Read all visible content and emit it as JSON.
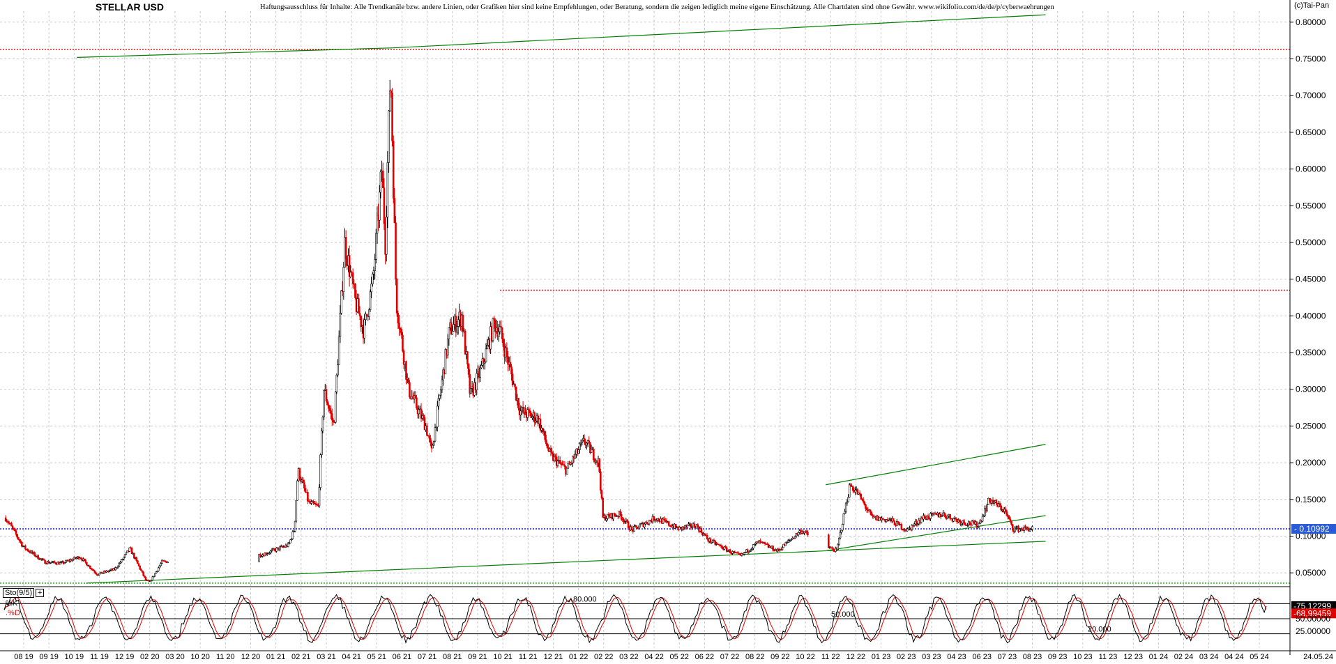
{
  "header": {
    "title": "STELLAR USD",
    "disclaimer": "Haftungsausschluss für Inhalte: Alle Trendkanäle bzw. andere Linien, oder Grafiken hier sind keine Empfehlungen, oder Beratung, sondern die zeigen lediglich meine eigene Einschätzung. Alle Chartdaten sind ohne Gewähr.  www.wikifolio.com/de/de/p/cyberwaehrungen",
    "copyright": "(c)Tai-Pan"
  },
  "colors": {
    "up_candle": "#000000",
    "down_candle": "#e00000",
    "grid": "#c8c8c8",
    "trendline": "#008000",
    "current_line": "#0000cc",
    "resistance_line": "#e00000",
    "current_label_bg": "#2a5bd7",
    "k_label_bg": "#000000",
    "d_label_bg": "#e00000"
  },
  "indicator": {
    "name": "Sto(9/5)",
    "k_label": "%K",
    "d_label": ".%D",
    "k_value": "75.12299",
    "d_value": "68.99459",
    "levels": [
      "80.000",
      "50.000",
      "20.000"
    ],
    "axis_labels": [
      "50.00000",
      "25.00000"
    ]
  },
  "chart_data": {
    "type": "candlestick",
    "title": "STELLAR USD",
    "xlabel": "",
    "ylabel": "",
    "ylim": [
      0.035,
      0.815
    ],
    "y_ticks": [
      "0.80000",
      "0.75000",
      "0.70000",
      "0.65000",
      "0.60000",
      "0.55000",
      "0.50000",
      "0.45000",
      "0.40000",
      "0.35000",
      "0.30000",
      "0.25000",
      "0.20000",
      "0.15000",
      "0.10000",
      "0.05000"
    ],
    "x_labels": [
      "08 19",
      "09 19",
      "10 19",
      "11 19",
      "12 19",
      "02 20",
      "03 20",
      "10 20",
      "11 20",
      "12 20",
      "01 21",
      "02 21",
      "03 21",
      "04 21",
      "05 21",
      "06 21",
      "07 21",
      "08 21",
      "09 21",
      "10 21",
      "11 21",
      "12 21",
      "01 22",
      "02 22",
      "03 22",
      "04 22",
      "05 22",
      "06 22",
      "07 22",
      "08 22",
      "09 22",
      "10 22",
      "11 22",
      "12 22",
      "01 23",
      "02 23",
      "03 23",
      "04 23",
      "06 23",
      "07 23",
      "08 23",
      "09 23",
      "10 23",
      "11 23",
      "12 23",
      "01 24",
      "02 24",
      "03 24",
      "04 24",
      "05 24"
    ],
    "last_date": "24.05.24",
    "current_value": "0.10992",
    "price_path": [
      [
        "2019-07-15",
        0.125
      ],
      [
        "2019-08-15",
        0.085
      ],
      [
        "2019-09-20",
        0.065
      ],
      [
        "2019-10-20",
        0.063
      ],
      [
        "2019-11-20",
        0.072
      ],
      [
        "2019-12-20",
        0.048
      ],
      [
        "2020-01-20",
        0.055
      ],
      [
        "2020-02-15",
        0.083
      ],
      [
        "2020-03-13",
        0.04
      ],
      [
        "2020-03-20",
        0.037
      ],
      [
        "2020-04-10",
        0.065
      ],
      [
        "2020-10-01",
        0.075
      ],
      [
        "2020-11-15",
        0.088
      ],
      [
        "2020-11-25",
        0.11
      ],
      [
        "2020-12-01",
        0.19
      ],
      [
        "2020-12-20",
        0.145
      ],
      [
        "2021-01-05",
        0.14
      ],
      [
        "2021-01-15",
        0.3
      ],
      [
        "2021-02-01",
        0.25
      ],
      [
        "2021-02-20",
        0.5
      ],
      [
        "2021-03-10",
        0.42
      ],
      [
        "2021-03-25",
        0.38
      ],
      [
        "2021-04-10",
        0.45
      ],
      [
        "2021-04-25",
        0.6
      ],
      [
        "2021-05-01",
        0.5
      ],
      [
        "2021-05-10",
        0.74
      ],
      [
        "2021-05-20",
        0.42
      ],
      [
        "2021-06-10",
        0.3
      ],
      [
        "2021-07-10",
        0.25
      ],
      [
        "2021-07-20",
        0.215
      ],
      [
        "2021-08-20",
        0.38
      ],
      [
        "2021-09-10",
        0.4
      ],
      [
        "2021-09-25",
        0.29
      ],
      [
        "2021-10-15",
        0.33
      ],
      [
        "2021-11-05",
        0.39
      ],
      [
        "2021-11-15",
        0.38
      ],
      [
        "2021-12-05",
        0.32
      ],
      [
        "2021-12-20",
        0.27
      ],
      [
        "2022-01-20",
        0.26
      ],
      [
        "2022-02-10",
        0.21
      ],
      [
        "2022-03-10",
        0.19
      ],
      [
        "2022-04-10",
        0.23
      ],
      [
        "2022-05-05",
        0.2
      ],
      [
        "2022-05-12",
        0.125
      ],
      [
        "2022-06-10",
        0.13
      ],
      [
        "2022-07-01",
        0.108
      ],
      [
        "2022-08-10",
        0.125
      ],
      [
        "2022-09-20",
        0.11
      ],
      [
        "2022-10-20",
        0.115
      ],
      [
        "2022-11-10",
        0.095
      ],
      [
        "2022-12-20",
        0.078
      ],
      [
        "2023-01-05",
        0.073
      ],
      [
        "2023-02-05",
        0.092
      ],
      [
        "2023-03-10",
        0.08
      ],
      [
        "2023-04-20",
        0.108
      ],
      [
        "2023-05-20",
        0.09
      ],
      [
        "2023-06-20",
        0.08
      ],
      [
        "2023-07-13",
        0.17
      ],
      [
        "2023-07-25",
        0.16
      ],
      [
        "2023-08-20",
        0.125
      ],
      [
        "2023-09-20",
        0.122
      ],
      [
        "2023-10-20",
        0.108
      ],
      [
        "2023-11-15",
        0.125
      ],
      [
        "2023-12-20",
        0.13
      ],
      [
        "2024-01-20",
        0.12
      ],
      [
        "2024-02-20",
        0.115
      ],
      [
        "2024-03-10",
        0.15
      ],
      [
        "2024-04-05",
        0.135
      ],
      [
        "2024-04-20",
        0.11
      ],
      [
        "2024-05-24",
        0.11
      ]
    ],
    "reference_lines": [
      {
        "type": "horizontal",
        "value": 0.10992,
        "style": "dotted",
        "color": "#0000cc"
      },
      {
        "type": "horizontal",
        "value": 0.763,
        "style": "dotted",
        "color": "#e00000"
      },
      {
        "type": "horizontal",
        "value": 0.435,
        "from": "2021-11-15",
        "style": "dotted",
        "color": "#e00000"
      },
      {
        "type": "horizontal",
        "value": 0.036,
        "style": "dotted",
        "color": "#00a000"
      }
    ],
    "trendlines": [
      {
        "from": [
          "2019-12-01",
          0.036
        ],
        "to": [
          "2023-06-01",
          0.08
        ],
        "color": "#008000"
      },
      {
        "from": [
          "2023-06-01",
          0.08
        ],
        "to": [
          "2024-06-15",
          0.093
        ],
        "color": "#008000"
      },
      {
        "from": [
          "2019-11-15",
          0.752
        ],
        "to": [
          "2021-05-15",
          0.765
        ],
        "color": "#008000"
      },
      {
        "from": [
          "2021-05-15",
          0.765
        ],
        "to": [
          "2024-06-15",
          0.81
        ],
        "color": "#008000"
      },
      {
        "from": [
          "2023-06-01",
          0.17
        ],
        "to": [
          "2024-06-15",
          0.225
        ],
        "color": "#008000"
      },
      {
        "from": [
          "2023-06-01",
          0.08
        ],
        "to": [
          "2024-06-15",
          0.128
        ],
        "color": "#008000"
      }
    ]
  }
}
